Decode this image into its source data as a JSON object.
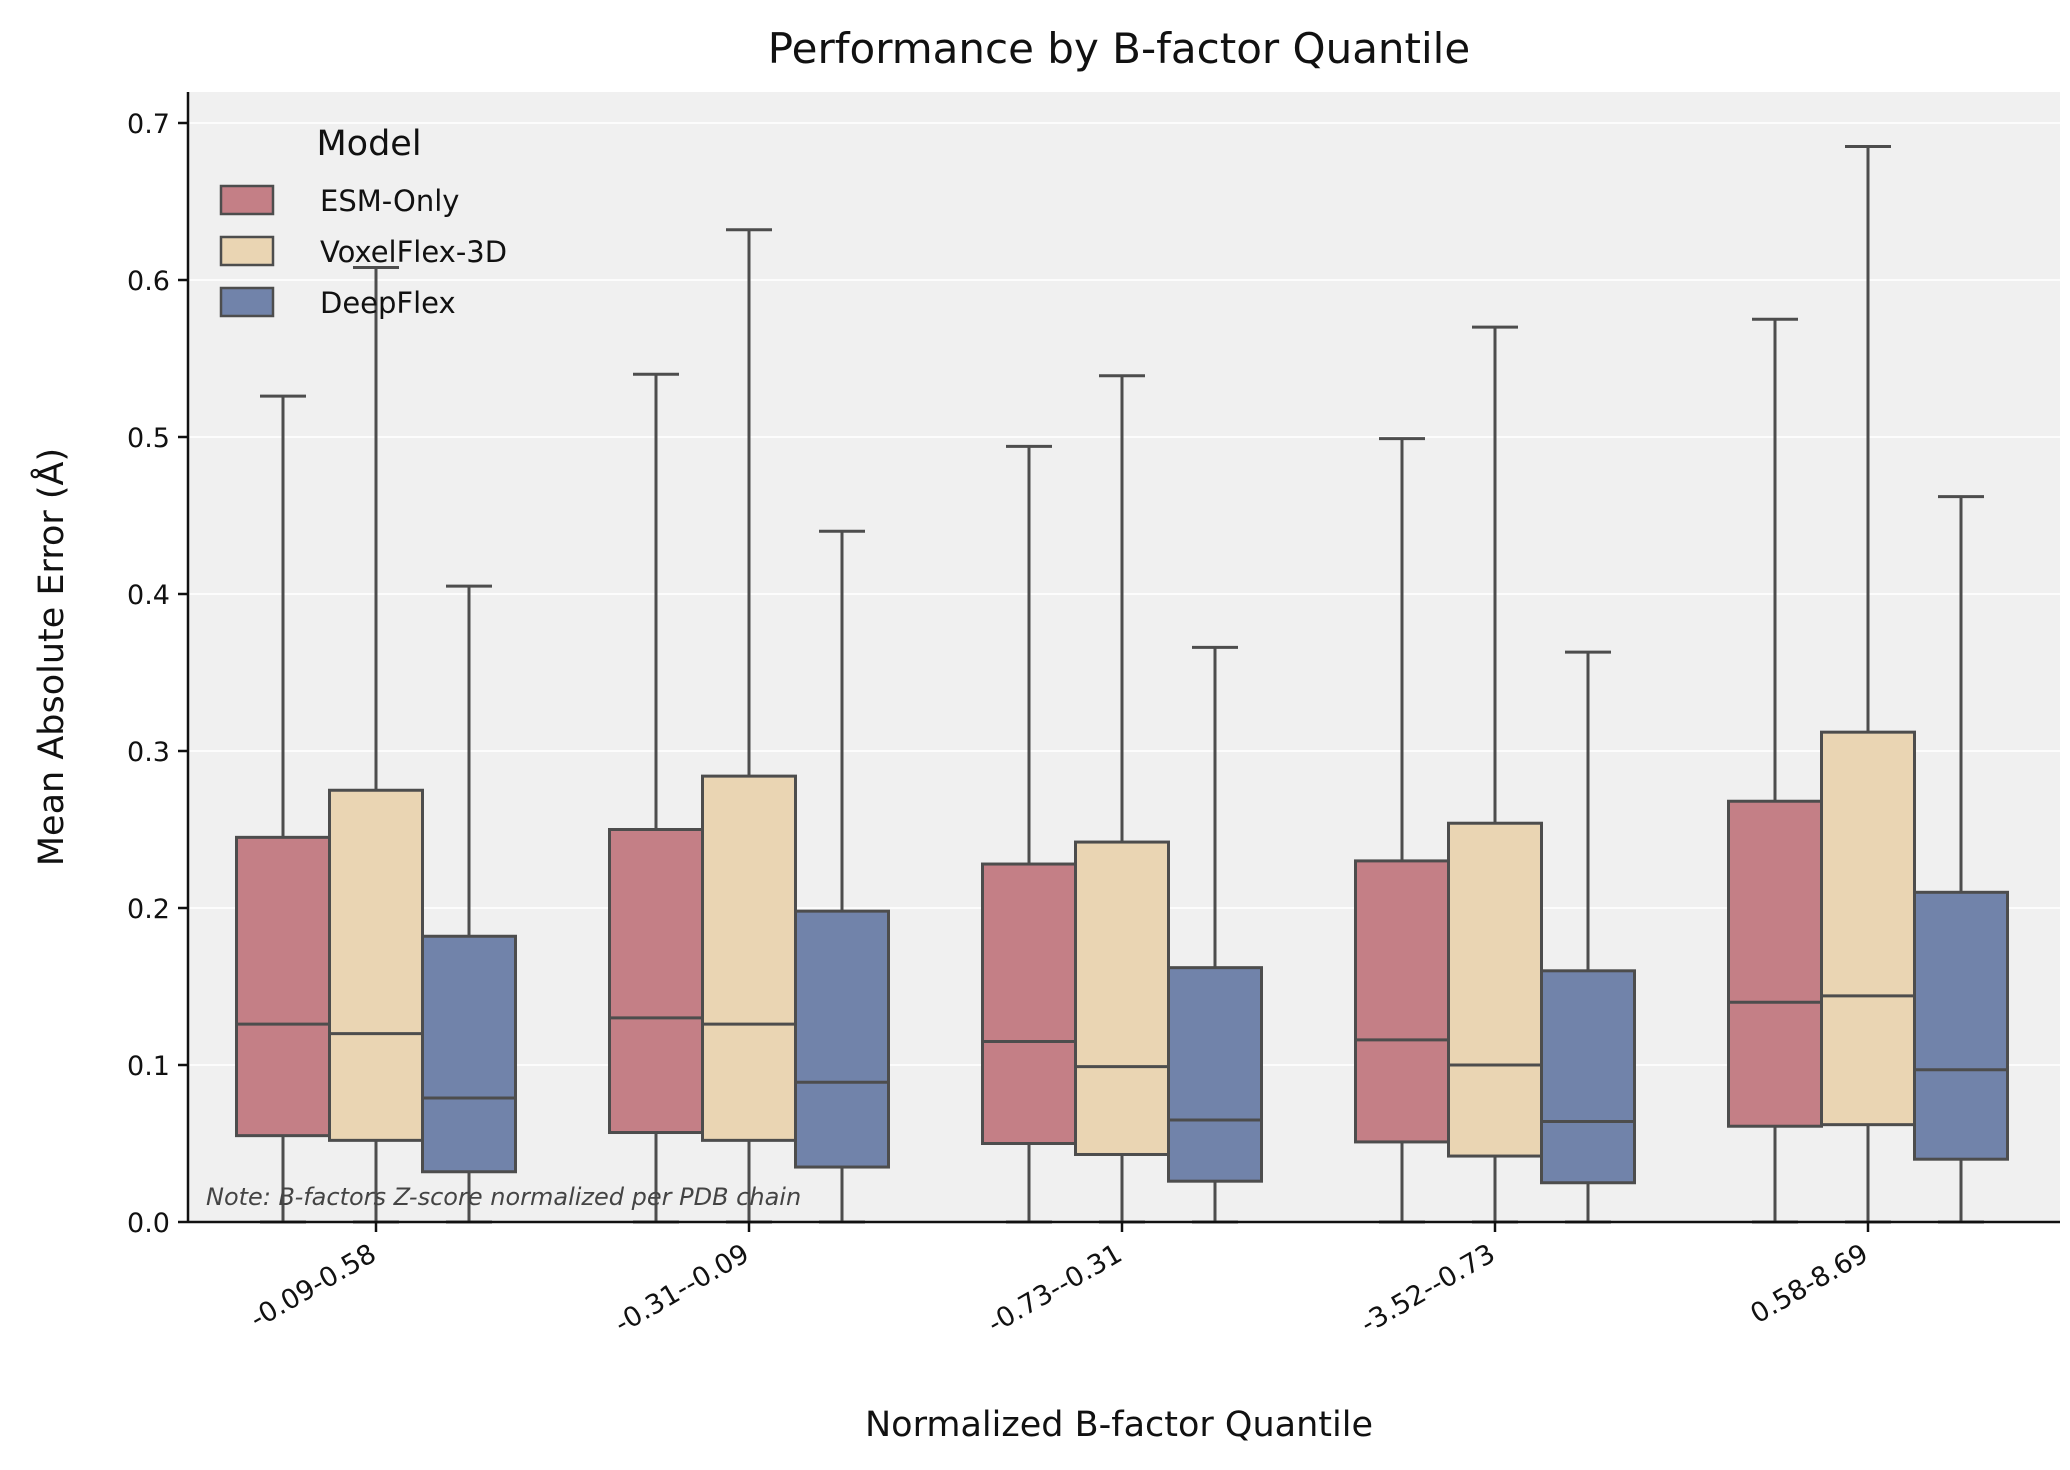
{
  "chart_data": {
    "type": "box",
    "title": "Performance by B-factor Quantile",
    "xlabel": "Normalized B-factor Quantile",
    "ylabel": "Mean Absolute Error (Å)",
    "ylim": [
      0,
      0.72
    ],
    "yticks": [
      0.0,
      0.1,
      0.2,
      0.3,
      0.4,
      0.5,
      0.6,
      0.7
    ],
    "ytick_labels": [
      "0.0",
      "0.1",
      "0.2",
      "0.3",
      "0.4",
      "0.5",
      "0.6",
      "0.7"
    ],
    "categories": [
      "-0.09-0.58",
      "-0.31--0.09",
      "-0.73--0.31",
      "-3.52--0.73",
      "0.58-8.69"
    ],
    "grid": "horizontal",
    "legend": {
      "title": "Model",
      "position": "top-left"
    },
    "note": "Note: B-factors Z-score normalized per PDB chain",
    "series": [
      {
        "name": "ESM-Only",
        "color": "#c47f86",
        "boxes": [
          {
            "whislo": 0.0,
            "q1": 0.055,
            "median": 0.126,
            "q3": 0.245,
            "whishi": 0.526
          },
          {
            "whislo": 0.0,
            "q1": 0.057,
            "median": 0.13,
            "q3": 0.25,
            "whishi": 0.54
          },
          {
            "whislo": 0.0,
            "q1": 0.05,
            "median": 0.115,
            "q3": 0.228,
            "whishi": 0.494
          },
          {
            "whislo": 0.0,
            "q1": 0.051,
            "median": 0.116,
            "q3": 0.23,
            "whishi": 0.499
          },
          {
            "whislo": 0.0,
            "q1": 0.061,
            "median": 0.14,
            "q3": 0.268,
            "whishi": 0.575
          }
        ]
      },
      {
        "name": "VoxelFlex-3D",
        "color": "#ead5b3",
        "boxes": [
          {
            "whislo": 0.0,
            "q1": 0.052,
            "median": 0.12,
            "q3": 0.275,
            "whishi": 0.608
          },
          {
            "whislo": 0.0,
            "q1": 0.052,
            "median": 0.126,
            "q3": 0.284,
            "whishi": 0.632
          },
          {
            "whislo": 0.0,
            "q1": 0.043,
            "median": 0.099,
            "q3": 0.242,
            "whishi": 0.539
          },
          {
            "whislo": 0.0,
            "q1": 0.042,
            "median": 0.1,
            "q3": 0.254,
            "whishi": 0.57
          },
          {
            "whislo": 0.0,
            "q1": 0.062,
            "median": 0.144,
            "q3": 0.312,
            "whishi": 0.685
          }
        ]
      },
      {
        "name": "DeepFlex",
        "color": "#7183aa",
        "boxes": [
          {
            "whislo": 0.0,
            "q1": 0.032,
            "median": 0.079,
            "q3": 0.182,
            "whishi": 0.405
          },
          {
            "whislo": 0.0,
            "q1": 0.035,
            "median": 0.089,
            "q3": 0.198,
            "whishi": 0.44
          },
          {
            "whislo": 0.0,
            "q1": 0.026,
            "median": 0.065,
            "q3": 0.162,
            "whishi": 0.366
          },
          {
            "whislo": 0.0,
            "q1": 0.025,
            "median": 0.064,
            "q3": 0.16,
            "whishi": 0.363
          },
          {
            "whislo": 0.0,
            "q1": 0.04,
            "median": 0.097,
            "q3": 0.21,
            "whishi": 0.462
          }
        ]
      }
    ]
  }
}
